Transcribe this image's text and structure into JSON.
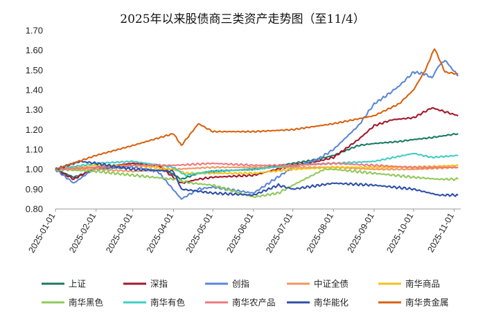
{
  "chart_data": {
    "type": "line",
    "title": "2025年以来股债商三类资产走势图（至11/4）",
    "xlabel": "",
    "ylabel": "",
    "ylim": [
      0.8,
      1.7
    ],
    "yticks": [
      "0.80",
      "0.90",
      "1.00",
      "1.10",
      "1.20",
      "1.30",
      "1.40",
      "1.50",
      "1.60",
      "1.70"
    ],
    "x_ticks": [
      "2025-01-01",
      "2025-02-01",
      "2025-03-01",
      "2025-04-01",
      "2025-05-01",
      "2025-06-01",
      "2025-07-01",
      "2025-08-01",
      "2025-09-01",
      "2025-10-01",
      "2025-11-01"
    ],
    "grid": false,
    "legend_position": "bottom",
    "series": [
      {
        "name": "上证",
        "color": "#1a7a60",
        "points": [
          [
            "2025-01-01",
            1.0
          ],
          [
            "2025-01-15",
            0.96
          ],
          [
            "2025-02-01",
            1.0
          ],
          [
            "2025-03-01",
            1.02
          ],
          [
            "2025-03-20",
            1.02
          ],
          [
            "2025-04-07",
            0.95
          ],
          [
            "2025-04-20",
            0.98
          ],
          [
            "2025-05-01",
            0.99
          ],
          [
            "2025-06-01",
            1.0
          ],
          [
            "2025-07-01",
            1.03
          ],
          [
            "2025-07-20",
            1.05
          ],
          [
            "2025-08-01",
            1.07
          ],
          [
            "2025-08-20",
            1.12
          ],
          [
            "2025-09-01",
            1.13
          ],
          [
            "2025-09-20",
            1.14
          ],
          [
            "2025-10-01",
            1.15
          ],
          [
            "2025-10-15",
            1.16
          ],
          [
            "2025-10-25",
            1.17
          ],
          [
            "2025-11-04",
            1.18
          ]
        ]
      },
      {
        "name": "深指",
        "color": "#a3162c",
        "points": [
          [
            "2025-01-01",
            1.0
          ],
          [
            "2025-01-15",
            0.95
          ],
          [
            "2025-02-01",
            1.01
          ],
          [
            "2025-03-01",
            1.03
          ],
          [
            "2025-03-20",
            1.02
          ],
          [
            "2025-04-07",
            0.93
          ],
          [
            "2025-04-20",
            0.95
          ],
          [
            "2025-05-01",
            0.96
          ],
          [
            "2025-06-01",
            0.97
          ],
          [
            "2025-07-01",
            1.02
          ],
          [
            "2025-07-20",
            1.04
          ],
          [
            "2025-08-01",
            1.06
          ],
          [
            "2025-08-20",
            1.15
          ],
          [
            "2025-09-01",
            1.22
          ],
          [
            "2025-09-15",
            1.25
          ],
          [
            "2025-10-01",
            1.26
          ],
          [
            "2025-10-15",
            1.31
          ],
          [
            "2025-10-25",
            1.29
          ],
          [
            "2025-11-04",
            1.27
          ]
        ]
      },
      {
        "name": "创指",
        "color": "#5b86d6",
        "points": [
          [
            "2025-01-01",
            1.0
          ],
          [
            "2025-01-15",
            0.93
          ],
          [
            "2025-02-01",
            1.01
          ],
          [
            "2025-03-01",
            1.01
          ],
          [
            "2025-03-20",
            0.99
          ],
          [
            "2025-04-07",
            0.85
          ],
          [
            "2025-04-20",
            0.9
          ],
          [
            "2025-05-01",
            0.91
          ],
          [
            "2025-06-01",
            0.88
          ],
          [
            "2025-07-01",
            1.01
          ],
          [
            "2025-07-20",
            1.05
          ],
          [
            "2025-08-01",
            1.1
          ],
          [
            "2025-08-20",
            1.22
          ],
          [
            "2025-09-01",
            1.33
          ],
          [
            "2025-09-10",
            1.37
          ],
          [
            "2025-09-20",
            1.42
          ],
          [
            "2025-10-01",
            1.49
          ],
          [
            "2025-10-10",
            1.48
          ],
          [
            "2025-10-15",
            1.46
          ],
          [
            "2025-10-20",
            1.52
          ],
          [
            "2025-10-25",
            1.55
          ],
          [
            "2025-11-04",
            1.47
          ]
        ]
      },
      {
        "name": "中证全债",
        "color": "#f0975a",
        "points": [
          [
            "2025-01-01",
            1.0
          ],
          [
            "2025-02-01",
            1.0
          ],
          [
            "2025-03-01",
            0.99
          ],
          [
            "2025-04-01",
            1.0
          ],
          [
            "2025-05-01",
            1.01
          ],
          [
            "2025-06-01",
            1.01
          ],
          [
            "2025-07-01",
            1.01
          ],
          [
            "2025-08-01",
            1.01
          ],
          [
            "2025-09-01",
            1.0
          ],
          [
            "2025-10-01",
            1.0
          ],
          [
            "2025-11-04",
            1.01
          ]
        ]
      },
      {
        "name": "南华商品",
        "color": "#f2c118",
        "points": [
          [
            "2025-01-01",
            1.0
          ],
          [
            "2025-02-01",
            1.02
          ],
          [
            "2025-03-01",
            1.02
          ],
          [
            "2025-04-01",
            1.0
          ],
          [
            "2025-04-10",
            0.98
          ],
          [
            "2025-05-01",
            0.98
          ],
          [
            "2025-06-01",
            0.98
          ],
          [
            "2025-07-01",
            1.0
          ],
          [
            "2025-08-01",
            1.01
          ],
          [
            "2025-09-01",
            1.01
          ],
          [
            "2025-10-01",
            1.01
          ],
          [
            "2025-11-04",
            1.02
          ]
        ]
      },
      {
        "name": "南华黑色",
        "color": "#8fca5a",
        "points": [
          [
            "2025-01-01",
            1.0
          ],
          [
            "2025-02-01",
            0.99
          ],
          [
            "2025-03-01",
            0.97
          ],
          [
            "2025-04-01",
            0.95
          ],
          [
            "2025-04-15",
            0.93
          ],
          [
            "2025-05-01",
            0.92
          ],
          [
            "2025-06-01",
            0.86
          ],
          [
            "2025-06-20",
            0.88
          ],
          [
            "2025-07-01",
            0.92
          ],
          [
            "2025-07-25",
            1.0
          ],
          [
            "2025-08-01",
            1.0
          ],
          [
            "2025-09-01",
            0.98
          ],
          [
            "2025-10-01",
            0.96
          ],
          [
            "2025-10-20",
            0.95
          ],
          [
            "2025-11-04",
            0.95
          ]
        ]
      },
      {
        "name": "南华有色",
        "color": "#40cdc4",
        "points": [
          [
            "2025-01-01",
            1.0
          ],
          [
            "2025-02-01",
            1.03
          ],
          [
            "2025-03-01",
            1.04
          ],
          [
            "2025-04-01",
            1.01
          ],
          [
            "2025-04-10",
            0.97
          ],
          [
            "2025-05-01",
            0.99
          ],
          [
            "2025-06-01",
            1.0
          ],
          [
            "2025-07-01",
            1.02
          ],
          [
            "2025-08-01",
            1.03
          ],
          [
            "2025-09-01",
            1.04
          ],
          [
            "2025-10-01",
            1.08
          ],
          [
            "2025-10-15",
            1.06
          ],
          [
            "2025-11-04",
            1.07
          ]
        ]
      },
      {
        "name": "南华农产品",
        "color": "#ef7880",
        "points": [
          [
            "2025-01-01",
            1.0
          ],
          [
            "2025-02-01",
            1.01
          ],
          [
            "2025-03-01",
            1.02
          ],
          [
            "2025-04-01",
            1.02
          ],
          [
            "2025-05-01",
            1.03
          ],
          [
            "2025-06-01",
            1.02
          ],
          [
            "2025-07-01",
            1.02
          ],
          [
            "2025-08-01",
            1.03
          ],
          [
            "2025-09-01",
            1.02
          ],
          [
            "2025-10-01",
            1.01
          ],
          [
            "2025-11-04",
            1.01
          ]
        ]
      },
      {
        "name": "南华能化",
        "color": "#2f4fa8",
        "points": [
          [
            "2025-01-01",
            1.0
          ],
          [
            "2025-01-20",
            1.04
          ],
          [
            "2025-02-01",
            1.03
          ],
          [
            "2025-03-01",
            1.0
          ],
          [
            "2025-04-01",
            0.99
          ],
          [
            "2025-04-07",
            0.9
          ],
          [
            "2025-05-01",
            0.88
          ],
          [
            "2025-06-01",
            0.87
          ],
          [
            "2025-06-20",
            0.92
          ],
          [
            "2025-07-01",
            0.9
          ],
          [
            "2025-08-01",
            0.93
          ],
          [
            "2025-09-01",
            0.92
          ],
          [
            "2025-10-01",
            0.9
          ],
          [
            "2025-10-20",
            0.87
          ],
          [
            "2025-11-04",
            0.87
          ]
        ]
      },
      {
        "name": "南华贵金属",
        "color": "#d9620f",
        "points": [
          [
            "2025-01-01",
            1.0
          ],
          [
            "2025-02-01",
            1.07
          ],
          [
            "2025-03-01",
            1.12
          ],
          [
            "2025-04-01",
            1.18
          ],
          [
            "2025-04-07",
            1.12
          ],
          [
            "2025-04-20",
            1.23
          ],
          [
            "2025-05-01",
            1.19
          ],
          [
            "2025-06-01",
            1.19
          ],
          [
            "2025-07-01",
            1.2
          ],
          [
            "2025-08-01",
            1.23
          ],
          [
            "2025-09-01",
            1.27
          ],
          [
            "2025-09-20",
            1.33
          ],
          [
            "2025-10-01",
            1.4
          ],
          [
            "2025-10-10",
            1.5
          ],
          [
            "2025-10-17",
            1.61
          ],
          [
            "2025-10-25",
            1.49
          ],
          [
            "2025-11-04",
            1.48
          ]
        ]
      }
    ]
  }
}
